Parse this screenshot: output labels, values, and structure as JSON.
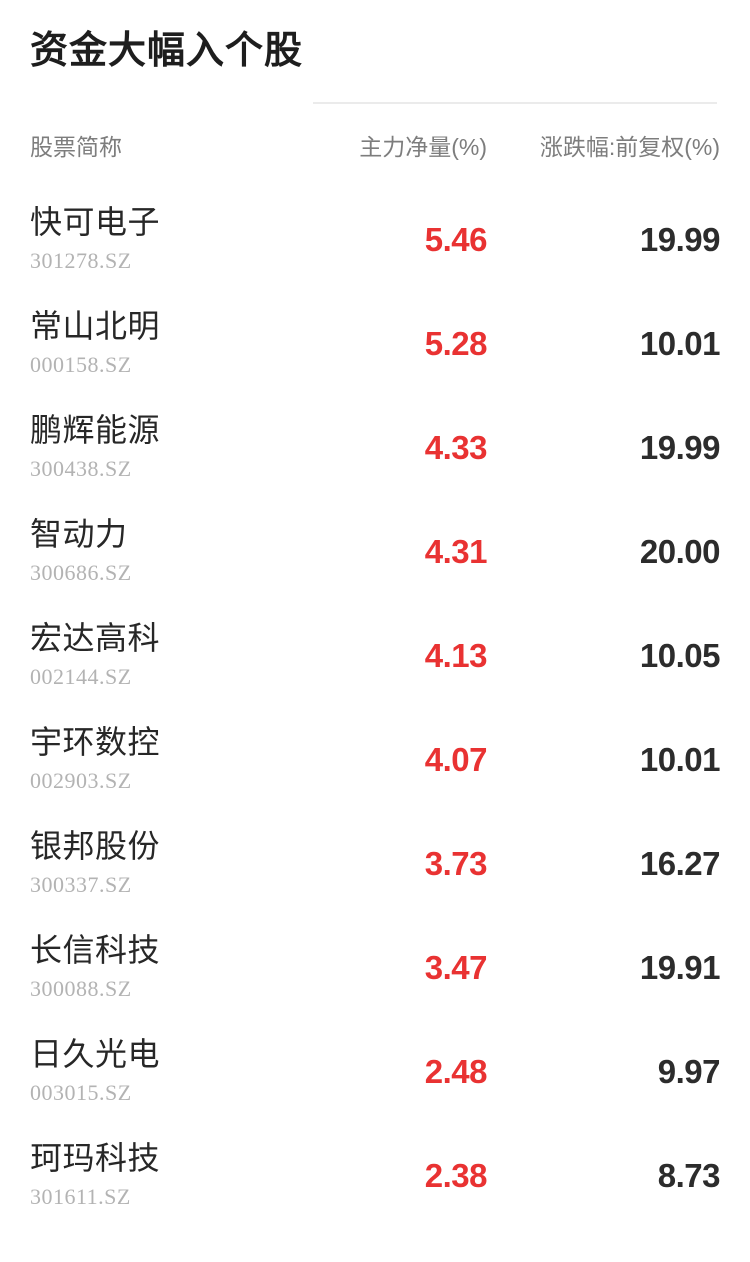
{
  "page": {
    "title": "资金大幅入个股"
  },
  "table": {
    "columns": {
      "name": "股票简称",
      "main_net": "主力净量(%)",
      "change": "涨跌幅:前复权(%)"
    },
    "rows": [
      {
        "name": "快可电子",
        "code": "301278.SZ",
        "main_net": "5.46",
        "change": "19.99"
      },
      {
        "name": "常山北明",
        "code": "000158.SZ",
        "main_net": "5.28",
        "change": "10.01"
      },
      {
        "name": "鹏辉能源",
        "code": "300438.SZ",
        "main_net": "4.33",
        "change": "19.99"
      },
      {
        "name": "智动力",
        "code": "300686.SZ",
        "main_net": "4.31",
        "change": "20.00"
      },
      {
        "name": "宏达高科",
        "code": "002144.SZ",
        "main_net": "4.13",
        "change": "10.05"
      },
      {
        "name": "宇环数控",
        "code": "002903.SZ",
        "main_net": "4.07",
        "change": "10.01"
      },
      {
        "name": "银邦股份",
        "code": "300337.SZ",
        "main_net": "3.73",
        "change": "16.27"
      },
      {
        "name": "长信科技",
        "code": "300088.SZ",
        "main_net": "3.47",
        "change": "19.91"
      },
      {
        "name": "日久光电",
        "code": "003015.SZ",
        "main_net": "2.48",
        "change": "9.97"
      },
      {
        "name": "珂玛科技",
        "code": "301611.SZ",
        "main_net": "2.38",
        "change": "8.73"
      }
    ]
  },
  "colors": {
    "up_red": "#e93232",
    "value_dark": "#2c2c2c",
    "code_gray": "#b3b3b3",
    "header_gray": "#7d7d7d",
    "divider": "#ebebeb"
  }
}
